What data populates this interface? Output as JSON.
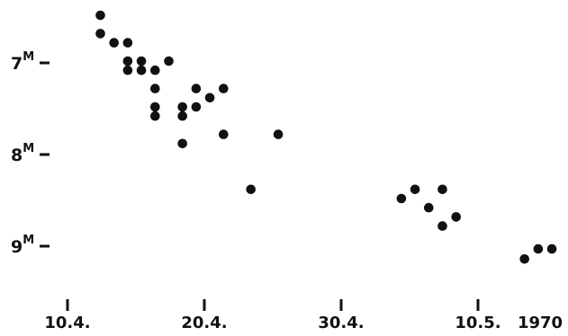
{
  "chart_data": {
    "type": "scatter",
    "title": "",
    "xlabel": "",
    "ylabel": "",
    "year_label": "1970",
    "x_ticks": [
      {
        "label": "10.4.",
        "day": 0
      },
      {
        "label": "20.4.",
        "day": 10
      },
      {
        "label": "30.4.",
        "day": 20
      },
      {
        "label": "10.5.",
        "day": 30
      }
    ],
    "y_ticks": [
      {
        "label": "7",
        "sup": "M",
        "mag": 7.0
      },
      {
        "label": "8",
        "sup": "M",
        "mag": 8.0
      },
      {
        "label": "9",
        "sup": "M",
        "mag": 9.0
      }
    ],
    "xlim": [
      -0.5,
      34.5
    ],
    "ylim": [
      6.45,
      9.35
    ],
    "y_inverted": true,
    "grid": false,
    "points": [
      {
        "day": 2.4,
        "mag": 6.48
      },
      {
        "day": 2.4,
        "mag": 6.68
      },
      {
        "day": 3.4,
        "mag": 6.78
      },
      {
        "day": 4.4,
        "mag": 6.78
      },
      {
        "day": 4.4,
        "mag": 6.98
      },
      {
        "day": 4.4,
        "mag": 7.08
      },
      {
        "day": 5.4,
        "mag": 6.98
      },
      {
        "day": 5.4,
        "mag": 7.08
      },
      {
        "day": 6.4,
        "mag": 7.08
      },
      {
        "day": 7.4,
        "mag": 6.98
      },
      {
        "day": 6.4,
        "mag": 7.28
      },
      {
        "day": 6.4,
        "mag": 7.48
      },
      {
        "day": 6.4,
        "mag": 7.58
      },
      {
        "day": 8.4,
        "mag": 7.48
      },
      {
        "day": 8.4,
        "mag": 7.58
      },
      {
        "day": 9.4,
        "mag": 7.28
      },
      {
        "day": 9.4,
        "mag": 7.48
      },
      {
        "day": 10.4,
        "mag": 7.38
      },
      {
        "day": 11.4,
        "mag": 7.28
      },
      {
        "day": 11.4,
        "mag": 7.78
      },
      {
        "day": 8.4,
        "mag": 7.88
      },
      {
        "day": 15.4,
        "mag": 7.78
      },
      {
        "day": 13.4,
        "mag": 8.38
      },
      {
        "day": 24.4,
        "mag": 8.48
      },
      {
        "day": 25.4,
        "mag": 8.38
      },
      {
        "day": 26.4,
        "mag": 8.58
      },
      {
        "day": 27.4,
        "mag": 8.38
      },
      {
        "day": 27.4,
        "mag": 8.78
      },
      {
        "day": 28.4,
        "mag": 8.68
      },
      {
        "day": 33.4,
        "mag": 9.14
      },
      {
        "day": 34.4,
        "mag": 9.03
      },
      {
        "day": 35.4,
        "mag": 9.03
      }
    ]
  }
}
